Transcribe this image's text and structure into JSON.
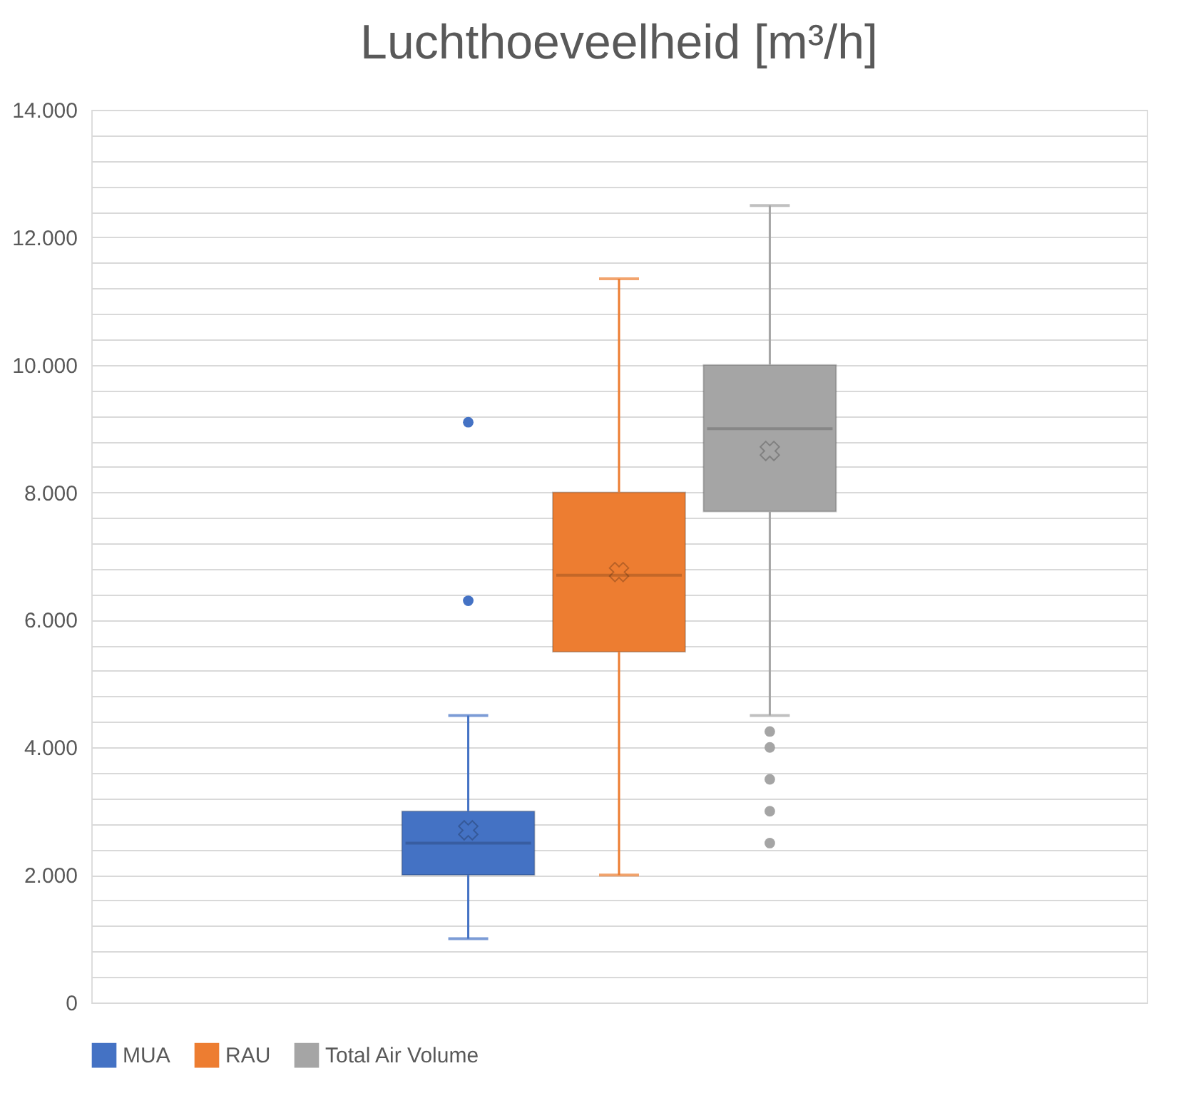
{
  "chart_data": {
    "type": "box",
    "title": "Luchthoeveelheid [m³/h]",
    "categories": [
      null
    ],
    "series": [
      {
        "name": "MUA",
        "color": "#4472c4",
        "boxes": [
          {
            "low": 1000,
            "q1": 2000,
            "median": 2500,
            "q3": 3000,
            "high": 4500,
            "mean": 2700,
            "outliers": [
              6300,
              9100
            ]
          }
        ]
      },
      {
        "name": "RAU",
        "color": "#ed7d31",
        "boxes": [
          {
            "low": 2000,
            "q1": 5500,
            "median": 6700,
            "q3": 8000,
            "high": 11350,
            "mean": 6750
          }
        ]
      },
      {
        "name": "Total Air Volume",
        "color": "#a5a5a5",
        "boxes": [
          {
            "low": 4500,
            "q1": 7700,
            "median": 9000,
            "q3": 10000,
            "high": 12500,
            "mean": 8650,
            "outliers": [
              4250,
              4000,
              3500,
              3000,
              2500
            ]
          }
        ]
      }
    ],
    "ylim": [
      0,
      14000
    ],
    "yticks": [
      0,
      {
        "value": 400,
        "label": null
      },
      {
        "value": 800,
        "label": null
      },
      {
        "value": 1200,
        "label": null
      },
      {
        "value": 1600,
        "label": null
      },
      {
        "value": 2000,
        "label": "2.000"
      },
      {
        "value": 2400,
        "label": null
      },
      {
        "value": 2800,
        "label": null
      },
      {
        "value": 3200,
        "label": null
      },
      {
        "value": 3600,
        "label": null
      },
      {
        "value": 4000,
        "label": "4.000"
      },
      {
        "value": 4400,
        "label": null
      },
      {
        "value": 4800,
        "label": null
      },
      {
        "value": 5200,
        "label": null
      },
      {
        "value": 5600,
        "label": null
      },
      {
        "value": 6000,
        "label": "6.000"
      },
      {
        "value": 6400,
        "label": null
      },
      {
        "value": 6800,
        "label": null
      },
      {
        "value": 7200,
        "label": null
      },
      {
        "value": 7600,
        "label": null
      },
      {
        "value": 8000,
        "label": "8.000"
      },
      {
        "value": 8400,
        "label": null
      },
      {
        "value": 8800,
        "label": null
      },
      {
        "value": 9200,
        "label": null
      },
      {
        "value": 9600,
        "label": null
      },
      {
        "value": 10000,
        "label": "10.000"
      },
      {
        "value": 10400,
        "label": null
      },
      {
        "value": 10800,
        "label": null
      },
      {
        "value": 11200,
        "label": null
      },
      {
        "value": 11600,
        "label": null
      },
      {
        "value": 12000,
        "label": "12.000"
      },
      {
        "value": 12400,
        "label": null
      },
      {
        "value": 12800,
        "label": null
      },
      {
        "value": 13200,
        "label": null
      },
      {
        "value": 13600,
        "label": null
      },
      {
        "value": 14000,
        "label": "14.000"
      }
    ],
    "grid": "y",
    "legend": "bottom"
  }
}
